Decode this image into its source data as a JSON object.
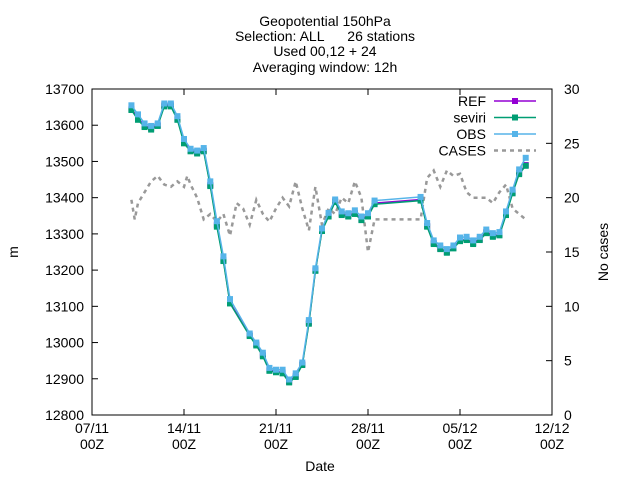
{
  "chart_data": {
    "type": "line",
    "title_lines": [
      "Geopotential 150hPa",
      "Selection: ALL      26 stations",
      "Used 00,12 + 24",
      "Averaging window: 12h"
    ],
    "xlabel": "Date",
    "ylabel": "m",
    "y2label": "No cases",
    "xlim": [
      "2012-11-07T00:00",
      "2012-12-12T00:00"
    ],
    "ylim": [
      12800,
      13700
    ],
    "y2lim": [
      0,
      30
    ],
    "x_ticks": [
      {
        "x": "2012-11-07T00:00",
        "line1": "07/11",
        "line2": "00Z"
      },
      {
        "x": "2012-11-14T00:00",
        "line1": "14/11",
        "line2": "00Z"
      },
      {
        "x": "2012-11-21T00:00",
        "line1": "21/11",
        "line2": "00Z"
      },
      {
        "x": "2012-11-28T00:00",
        "line1": "28/11",
        "line2": "00Z"
      },
      {
        "x": "2012-12-05T00:00",
        "line1": "05/12",
        "line2": "00Z"
      },
      {
        "x": "2012-12-12T00:00",
        "line1": "12/12",
        "line2": "00Z"
      }
    ],
    "y_ticks": [
      "12800",
      "12900",
      "13000",
      "13100",
      "13200",
      "13300",
      "13400",
      "13500",
      "13600",
      "13700"
    ],
    "y2_ticks": [
      "0",
      "5",
      "10",
      "15",
      "20",
      "25",
      "30"
    ],
    "grid": false,
    "legend_position": "top-right",
    "series": [
      {
        "name": "REF",
        "color": "#9400d3",
        "marker": "square",
        "axis": "y",
        "points": [
          [
            "2012-11-10T00:00",
            13645
          ],
          [
            "2012-11-10T12:00",
            13620
          ],
          [
            "2012-11-11T00:00",
            13598
          ],
          [
            "2012-11-11T12:00",
            13592
          ],
          [
            "2012-11-12T00:00",
            13600
          ],
          [
            "2012-11-12T12:00",
            13655
          ],
          [
            "2012-11-13T00:00",
            13655
          ],
          [
            "2012-11-13T12:00",
            13618
          ],
          [
            "2012-11-14T00:00",
            13555
          ],
          [
            "2012-11-14T12:00",
            13530
          ],
          [
            "2012-11-15T00:00",
            13525
          ],
          [
            "2012-11-15T12:00",
            13530
          ],
          [
            "2012-11-16T00:00",
            13435
          ],
          [
            "2012-11-16T12:00",
            13325
          ],
          [
            "2012-11-17T00:00",
            13228
          ],
          [
            "2012-11-17T12:00",
            13110
          ],
          [
            "2012-11-19T00:00",
            13020
          ],
          [
            "2012-11-19T12:00",
            12995
          ],
          [
            "2012-11-20T00:00",
            12965
          ],
          [
            "2012-11-20T12:00",
            12925
          ],
          [
            "2012-11-21T00:00",
            12920
          ],
          [
            "2012-11-21T12:00",
            12918
          ],
          [
            "2012-11-22T00:00",
            12892
          ],
          [
            "2012-11-22T12:00",
            12908
          ],
          [
            "2012-11-23T00:00",
            12940
          ],
          [
            "2012-11-23T12:00",
            13055
          ],
          [
            "2012-11-24T00:00",
            13200
          ],
          [
            "2012-11-24T12:00",
            13310
          ],
          [
            "2012-11-25T00:00",
            13350
          ],
          [
            "2012-11-25T12:00",
            13390
          ],
          [
            "2012-11-26T00:00",
            13355
          ],
          [
            "2012-11-26T12:00",
            13350
          ],
          [
            "2012-11-27T00:00",
            13358
          ],
          [
            "2012-11-27T12:00",
            13340
          ],
          [
            "2012-11-28T00:00",
            13350
          ],
          [
            "2012-11-28T12:00",
            13385
          ],
          [
            "2012-12-02T00:00",
            13395
          ],
          [
            "2012-12-02T12:00",
            13322
          ],
          [
            "2012-12-03T00:00",
            13275
          ],
          [
            "2012-12-03T12:00",
            13260
          ],
          [
            "2012-12-04T00:00",
            13250
          ],
          [
            "2012-12-04T12:00",
            13262
          ],
          [
            "2012-12-05T00:00",
            13282
          ],
          [
            "2012-12-05T12:00",
            13285
          ],
          [
            "2012-12-06T00:00",
            13275
          ],
          [
            "2012-12-06T12:00",
            13285
          ],
          [
            "2012-12-07T00:00",
            13305
          ],
          [
            "2012-12-07T12:00",
            13295
          ],
          [
            "2012-12-08T00:00",
            13298
          ],
          [
            "2012-12-08T12:00",
            13355
          ],
          [
            "2012-12-09T00:00",
            13415
          ],
          [
            "2012-12-09T12:00",
            13468
          ],
          [
            "2012-12-10T00:00",
            13490
          ]
        ]
      },
      {
        "name": "seviri",
        "color": "#009e73",
        "marker": "square",
        "axis": "y",
        "points": [
          [
            "2012-11-10T00:00",
            13642
          ],
          [
            "2012-11-10T12:00",
            13615
          ],
          [
            "2012-11-11T00:00",
            13595
          ],
          [
            "2012-11-11T12:00",
            13588
          ],
          [
            "2012-11-12T00:00",
            13598
          ],
          [
            "2012-11-12T12:00",
            13652
          ],
          [
            "2012-11-13T00:00",
            13652
          ],
          [
            "2012-11-13T12:00",
            13615
          ],
          [
            "2012-11-14T00:00",
            13550
          ],
          [
            "2012-11-14T12:00",
            13528
          ],
          [
            "2012-11-15T00:00",
            13522
          ],
          [
            "2012-11-15T12:00",
            13528
          ],
          [
            "2012-11-16T00:00",
            13432
          ],
          [
            "2012-11-16T12:00",
            13320
          ],
          [
            "2012-11-17T00:00",
            13225
          ],
          [
            "2012-11-17T12:00",
            13108
          ],
          [
            "2012-11-19T00:00",
            13018
          ],
          [
            "2012-11-19T12:00",
            12992
          ],
          [
            "2012-11-20T00:00",
            12962
          ],
          [
            "2012-11-20T12:00",
            12922
          ],
          [
            "2012-11-21T00:00",
            12918
          ],
          [
            "2012-11-21T12:00",
            12915
          ],
          [
            "2012-11-22T00:00",
            12890
          ],
          [
            "2012-11-22T12:00",
            12905
          ],
          [
            "2012-11-23T00:00",
            12938
          ],
          [
            "2012-11-23T12:00",
            13052
          ],
          [
            "2012-11-24T00:00",
            13198
          ],
          [
            "2012-11-24T12:00",
            13308
          ],
          [
            "2012-11-25T00:00",
            13348
          ],
          [
            "2012-11-25T12:00",
            13388
          ],
          [
            "2012-11-26T00:00",
            13352
          ],
          [
            "2012-11-26T12:00",
            13348
          ],
          [
            "2012-11-27T00:00",
            13355
          ],
          [
            "2012-11-27T12:00",
            13338
          ],
          [
            "2012-11-28T00:00",
            13348
          ],
          [
            "2012-11-28T12:00",
            13382
          ],
          [
            "2012-12-02T00:00",
            13392
          ],
          [
            "2012-12-02T12:00",
            13320
          ],
          [
            "2012-12-03T00:00",
            13272
          ],
          [
            "2012-12-03T12:00",
            13258
          ],
          [
            "2012-12-04T00:00",
            13248
          ],
          [
            "2012-12-04T12:00",
            13260
          ],
          [
            "2012-12-05T00:00",
            13280
          ],
          [
            "2012-12-05T12:00",
            13283
          ],
          [
            "2012-12-06T00:00",
            13272
          ],
          [
            "2012-12-06T12:00",
            13283
          ],
          [
            "2012-12-07T00:00",
            13302
          ],
          [
            "2012-12-07T12:00",
            13292
          ],
          [
            "2012-12-08T00:00",
            13296
          ],
          [
            "2012-12-08T12:00",
            13352
          ],
          [
            "2012-12-09T00:00",
            13412
          ],
          [
            "2012-12-09T12:00",
            13465
          ],
          [
            "2012-12-10T00:00",
            13488
          ]
        ]
      },
      {
        "name": "OBS",
        "color": "#56b4e9",
        "marker": "square",
        "axis": "y",
        "points": [
          [
            "2012-11-10T00:00",
            13655
          ],
          [
            "2012-11-10T12:00",
            13630
          ],
          [
            "2012-11-11T00:00",
            13605
          ],
          [
            "2012-11-11T12:00",
            13598
          ],
          [
            "2012-11-12T00:00",
            13605
          ],
          [
            "2012-11-12T12:00",
            13660
          ],
          [
            "2012-11-13T00:00",
            13660
          ],
          [
            "2012-11-13T12:00",
            13625
          ],
          [
            "2012-11-14T00:00",
            13562
          ],
          [
            "2012-11-14T12:00",
            13535
          ],
          [
            "2012-11-15T00:00",
            13530
          ],
          [
            "2012-11-15T12:00",
            13537
          ],
          [
            "2012-11-16T00:00",
            13445
          ],
          [
            "2012-11-16T12:00",
            13335
          ],
          [
            "2012-11-17T00:00",
            13238
          ],
          [
            "2012-11-17T12:00",
            13120
          ],
          [
            "2012-11-19T00:00",
            13025
          ],
          [
            "2012-11-19T12:00",
            13000
          ],
          [
            "2012-11-20T00:00",
            12972
          ],
          [
            "2012-11-20T12:00",
            12930
          ],
          [
            "2012-11-21T00:00",
            12925
          ],
          [
            "2012-11-21T12:00",
            12925
          ],
          [
            "2012-11-22T00:00",
            12898
          ],
          [
            "2012-11-22T12:00",
            12915
          ],
          [
            "2012-11-23T00:00",
            12945
          ],
          [
            "2012-11-23T12:00",
            13062
          ],
          [
            "2012-11-24T00:00",
            13205
          ],
          [
            "2012-11-24T12:00",
            13315
          ],
          [
            "2012-11-25T00:00",
            13358
          ],
          [
            "2012-11-25T12:00",
            13395
          ],
          [
            "2012-11-26T00:00",
            13362
          ],
          [
            "2012-11-26T12:00",
            13357
          ],
          [
            "2012-11-27T00:00",
            13365
          ],
          [
            "2012-11-27T12:00",
            13348
          ],
          [
            "2012-11-28T00:00",
            13357
          ],
          [
            "2012-11-28T12:00",
            13392
          ],
          [
            "2012-12-02T00:00",
            13402
          ],
          [
            "2012-12-02T12:00",
            13330
          ],
          [
            "2012-12-03T00:00",
            13282
          ],
          [
            "2012-12-03T12:00",
            13268
          ],
          [
            "2012-12-04T00:00",
            13258
          ],
          [
            "2012-12-04T12:00",
            13268
          ],
          [
            "2012-12-05T00:00",
            13290
          ],
          [
            "2012-12-05T12:00",
            13292
          ],
          [
            "2012-12-06T00:00",
            13282
          ],
          [
            "2012-12-06T12:00",
            13292
          ],
          [
            "2012-12-07T00:00",
            13312
          ],
          [
            "2012-12-07T12:00",
            13302
          ],
          [
            "2012-12-08T00:00",
            13305
          ],
          [
            "2012-12-08T12:00",
            13362
          ],
          [
            "2012-12-09T00:00",
            13422
          ],
          [
            "2012-12-09T12:00",
            13478
          ],
          [
            "2012-12-10T00:00",
            13510
          ]
        ]
      },
      {
        "name": "CASES",
        "color": "#999999",
        "marker": "none",
        "dashed": true,
        "axis": "y2",
        "points": [
          [
            "2012-11-10T00:00",
            19.8
          ],
          [
            "2012-11-10T06:00",
            18.0
          ],
          [
            "2012-11-10T12:00",
            19.5
          ],
          [
            "2012-11-11T00:00",
            20.5
          ],
          [
            "2012-11-11T12:00",
            21.5
          ],
          [
            "2012-11-12T00:00",
            22.0
          ],
          [
            "2012-11-12T12:00",
            21.2
          ],
          [
            "2012-11-13T00:00",
            21.0
          ],
          [
            "2012-11-13T12:00",
            21.5
          ],
          [
            "2012-11-14T00:00",
            21.0
          ],
          [
            "2012-11-14T06:00",
            22.0
          ],
          [
            "2012-11-14T12:00",
            21.2
          ],
          [
            "2012-11-15T00:00",
            20.0
          ],
          [
            "2012-11-15T12:00",
            18.0
          ],
          [
            "2012-11-16T00:00",
            18.5
          ],
          [
            "2012-11-16T12:00",
            17.8
          ],
          [
            "2012-11-17T00:00",
            18.5
          ],
          [
            "2012-11-17T12:00",
            16.5
          ],
          [
            "2012-11-18T00:00",
            19.5
          ],
          [
            "2012-11-18T12:00",
            19.0
          ],
          [
            "2012-11-19T00:00",
            17.5
          ],
          [
            "2012-11-19T12:00",
            19.8
          ],
          [
            "2012-11-20T00:00",
            18.5
          ],
          [
            "2012-11-20T12:00",
            17.8
          ],
          [
            "2012-11-21T00:00",
            19.0
          ],
          [
            "2012-11-21T12:00",
            20.0
          ],
          [
            "2012-11-22T00:00",
            19.2
          ],
          [
            "2012-11-22T12:00",
            21.5
          ],
          [
            "2012-11-23T00:00",
            19.0
          ],
          [
            "2012-11-23T12:00",
            17.0
          ],
          [
            "2012-11-24T00:00",
            21.0
          ],
          [
            "2012-11-24T12:00",
            17.5
          ],
          [
            "2012-11-25T00:00",
            19.0
          ],
          [
            "2012-11-25T12:00",
            18.5
          ],
          [
            "2012-11-26T00:00",
            20.0
          ],
          [
            "2012-11-26T12:00",
            19.5
          ],
          [
            "2012-11-27T00:00",
            21.5
          ],
          [
            "2012-11-27T12:00",
            20.0
          ],
          [
            "2012-11-28T00:00",
            15.0
          ],
          [
            "2012-11-28T12:00",
            18.0
          ],
          [
            "2012-11-29T00:00",
            18.0
          ],
          [
            "2012-11-30T00:00",
            18.0
          ],
          [
            "2012-12-01T00:00",
            18.0
          ],
          [
            "2012-12-02T00:00",
            18.0
          ],
          [
            "2012-12-02T12:00",
            21.8
          ],
          [
            "2012-12-03T00:00",
            22.5
          ],
          [
            "2012-12-03T12:00",
            21.0
          ],
          [
            "2012-12-04T00:00",
            22.5
          ],
          [
            "2012-12-04T12:00",
            22.0
          ],
          [
            "2012-12-05T00:00",
            22.2
          ],
          [
            "2012-12-05T12:00",
            20.5
          ],
          [
            "2012-12-06T00:00",
            20.0
          ],
          [
            "2012-12-06T12:00",
            20.0
          ],
          [
            "2012-12-07T00:00",
            20.0
          ],
          [
            "2012-12-07T12:00",
            19.5
          ],
          [
            "2012-12-08T00:00",
            20.5
          ],
          [
            "2012-12-08T12:00",
            21.2
          ],
          [
            "2012-12-09T00:00",
            19.0
          ],
          [
            "2012-12-09T12:00",
            18.5
          ],
          [
            "2012-12-10T00:00",
            18.0
          ]
        ]
      }
    ]
  }
}
